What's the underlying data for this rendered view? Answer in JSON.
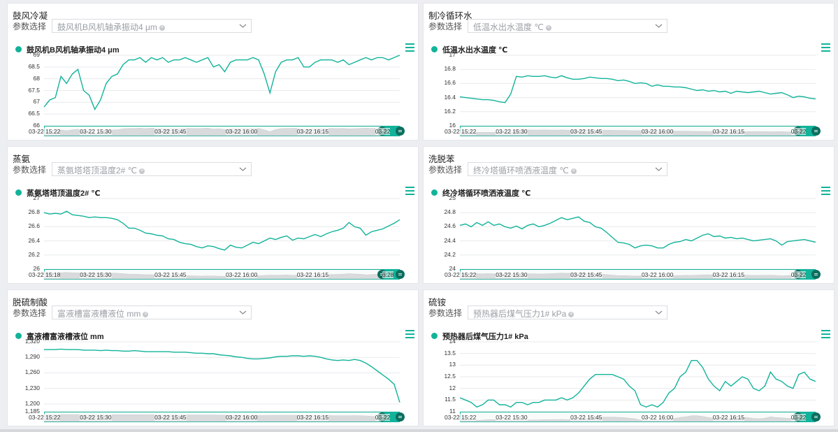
{
  "param_label": "参数选择",
  "colors": {
    "accent": "#12b39a",
    "background": "#eceef1"
  },
  "panels": [
    {
      "title": "鼓风冷凝",
      "selected_param": "鼓风机B风机轴承振动4 μm",
      "series_name": "鼓风机B风机轴承振动4 μm",
      "y_ticks": [
        "69",
        "68.5",
        "68",
        "67.5",
        "67",
        "66.5",
        "66"
      ],
      "x_ticks": [
        "03-22 15:22",
        "03-22 15:30",
        "03-22 15:45",
        "03-22 16:00",
        "03-22 16:15",
        "03-22"
      ],
      "chart_data": {
        "type": "line",
        "ylim": [
          66,
          69
        ],
        "values": [
          66.8,
          67.1,
          67.2,
          68.1,
          67.8,
          68.2,
          68.4,
          67.5,
          67.3,
          66.7,
          67.1,
          67.8,
          68.1,
          68.2,
          68.6,
          68.8,
          68.8,
          68.9,
          68.7,
          68.9,
          68.8,
          68.9,
          68.7,
          68.8,
          68.8,
          68.9,
          68.8,
          68.7,
          68.8,
          68.9,
          68.5,
          68.6,
          68.3,
          68.7,
          68.8,
          68.8,
          68.8,
          68.9,
          68.8,
          68.2,
          67.4,
          68.3,
          68.7,
          68.8,
          68.8,
          68.9,
          68.5,
          68.5,
          68.7,
          68.8,
          68.8,
          68.8,
          68.7,
          68.8,
          68.6,
          68.7,
          68.8,
          68.9,
          68.8,
          68.9,
          68.9,
          68.8,
          68.9,
          69.0
        ]
      }
    },
    {
      "title": "制冷循环水",
      "selected_param": "低温水出水温度 ℃",
      "series_name": "低温水出水温度 ℃",
      "y_ticks": [
        "17",
        "16.8",
        "16.6",
        "16.4",
        "16.2",
        "16"
      ],
      "x_ticks": [
        "03-22 15:22",
        "03-22 15:30",
        "03-22 15:45",
        "03-22 16:00",
        "03-22 16:15",
        "03-22"
      ],
      "chart_data": {
        "type": "line",
        "ylim": [
          16,
          17
        ],
        "values": [
          16.41,
          16.4,
          16.39,
          16.38,
          16.37,
          16.37,
          16.36,
          16.34,
          16.33,
          16.45,
          16.7,
          16.69,
          16.71,
          16.7,
          16.7,
          16.71,
          16.69,
          16.68,
          16.71,
          16.68,
          16.66,
          16.66,
          16.67,
          16.69,
          16.68,
          16.67,
          16.67,
          16.66,
          16.64,
          16.65,
          16.63,
          16.6,
          16.61,
          16.6,
          16.56,
          16.58,
          16.56,
          16.56,
          16.55,
          16.55,
          16.54,
          16.52,
          16.5,
          16.51,
          16.49,
          16.5,
          16.48,
          16.49,
          16.46,
          16.49,
          16.48,
          16.47,
          16.48,
          16.49,
          16.47,
          16.45,
          16.46,
          16.47,
          16.44,
          16.4,
          16.42,
          16.41,
          16.39,
          16.38
        ]
      }
    },
    {
      "title": "蒸氨",
      "selected_param": "蒸氨塔塔顶温度2# ℃",
      "series_name": "蒸氨塔塔顶温度2# ℃",
      "y_ticks": [
        "27",
        "26.8",
        "26.6",
        "26.4",
        "26.2",
        "26"
      ],
      "x_ticks": [
        "03-22 15:18",
        "03-22 15:30",
        "03-22 15:45",
        "03-22 16:00",
        "03-22 16:15",
        "6:28"
      ],
      "chart_data": {
        "type": "line",
        "ylim": [
          26,
          27
        ],
        "values": [
          26.8,
          26.78,
          26.79,
          26.78,
          26.82,
          26.77,
          26.76,
          26.75,
          26.73,
          26.74,
          26.73,
          26.73,
          26.72,
          26.7,
          26.65,
          26.58,
          26.58,
          26.55,
          26.51,
          26.5,
          26.48,
          26.47,
          26.43,
          26.42,
          26.38,
          26.36,
          26.35,
          26.32,
          26.3,
          26.33,
          26.32,
          26.29,
          26.27,
          26.34,
          26.31,
          26.3,
          26.34,
          26.38,
          26.36,
          26.4,
          26.44,
          26.42,
          26.45,
          26.47,
          26.41,
          26.44,
          26.43,
          26.46,
          26.49,
          26.46,
          26.5,
          26.53,
          26.55,
          26.58,
          26.66,
          26.6,
          26.58,
          26.48,
          26.53,
          26.55,
          26.57,
          26.61,
          26.65,
          26.7
        ]
      }
    },
    {
      "title": "洗脱苯",
      "selected_param": "终冷塔循环喷洒液温度 ℃",
      "series_name": "终冷塔循环喷洒液温度 ℃",
      "y_ticks": [
        "25",
        "24.8",
        "24.6",
        "24.4",
        "24.2",
        "24"
      ],
      "x_ticks": [
        "03-22 15:22",
        "03-22 15:30",
        "03-22 15:45",
        "03-22 16:00",
        "03-22 16:15",
        "03-22"
      ],
      "chart_data": {
        "type": "line",
        "ylim": [
          24,
          25
        ],
        "values": [
          24.62,
          24.64,
          24.6,
          24.66,
          24.62,
          24.67,
          24.62,
          24.64,
          24.6,
          24.58,
          24.61,
          24.57,
          24.62,
          24.64,
          24.6,
          24.62,
          24.65,
          24.69,
          24.73,
          24.7,
          24.72,
          24.74,
          24.68,
          24.66,
          24.6,
          24.58,
          24.52,
          24.45,
          24.38,
          24.37,
          24.35,
          24.3,
          24.33,
          24.34,
          24.33,
          24.3,
          24.3,
          24.35,
          24.38,
          24.39,
          24.42,
          24.4,
          24.44,
          24.48,
          24.5,
          24.46,
          24.47,
          24.44,
          24.45,
          24.43,
          24.44,
          24.42,
          24.4,
          24.41,
          24.42,
          24.43,
          24.4,
          24.34,
          24.39,
          24.4,
          24.41,
          24.42,
          24.4,
          24.38
        ]
      }
    },
    {
      "title": "脱硫制酸",
      "selected_param": "富液槽富液槽液位 mm",
      "series_name": "富液槽富液槽液位 mm",
      "y_ticks": [
        "1,320",
        "1,290",
        "1,260",
        "1,230",
        "1,200",
        "1,185"
      ],
      "x_ticks": [
        "03-22 15:22",
        "03-22 15:30",
        "03-22 15:45",
        "03-22 16:00",
        "03-22 16:15",
        "03-22"
      ],
      "chart_data": {
        "type": "line",
        "ylim": [
          1185,
          1320
        ],
        "values": [
          1305,
          1305,
          1305,
          1306,
          1305,
          1305,
          1305,
          1304,
          1304,
          1304,
          1303,
          1304,
          1303,
          1303,
          1302,
          1302,
          1303,
          1302,
          1301,
          1301,
          1301,
          1301,
          1301,
          1300,
          1300,
          1300,
          1299,
          1298,
          1298,
          1297,
          1297,
          1295,
          1294,
          1293,
          1291,
          1290,
          1288,
          1287,
          1287,
          1288,
          1289,
          1291,
          1292,
          1292,
          1293,
          1293,
          1292,
          1293,
          1292,
          1290,
          1287,
          1285,
          1284,
          1285,
          1284,
          1286,
          1284,
          1279,
          1272,
          1264,
          1256,
          1248,
          1238,
          1203
        ]
      }
    },
    {
      "title": "硫铵",
      "selected_param": "预热器后煤气压力1# kPa",
      "series_name": "预热器后煤气压力1# kPa",
      "y_ticks": [
        "14",
        "13.5",
        "13",
        "12.5",
        "12",
        "11.5",
        "11"
      ],
      "x_ticks": [
        "03-22 15:22",
        "03-22 15:30",
        "03-22 15:45",
        "03-22 16:00",
        "03-22 16:15",
        "03-22"
      ],
      "chart_data": {
        "type": "line",
        "ylim": [
          11,
          14
        ],
        "values": [
          11.6,
          11.5,
          11.4,
          11.2,
          11.3,
          11.5,
          11.5,
          11.3,
          11.3,
          11.2,
          11.4,
          11.4,
          11.3,
          11.4,
          11.4,
          11.5,
          11.5,
          11.5,
          11.6,
          11.5,
          11.6,
          11.8,
          12.1,
          12.4,
          12.6,
          12.6,
          12.6,
          12.6,
          12.5,
          12.4,
          12.1,
          11.9,
          11.3,
          11.2,
          11.3,
          11.2,
          11.4,
          11.8,
          12.0,
          12.5,
          12.7,
          13.2,
          13.2,
          12.9,
          12.4,
          12.1,
          11.9,
          12.3,
          12.1,
          12.3,
          12.5,
          12.4,
          12.0,
          11.9,
          12.1,
          12.7,
          12.4,
          12.3,
          12.1,
          12.0,
          12.6,
          12.7,
          12.4,
          12.3
        ]
      }
    }
  ]
}
